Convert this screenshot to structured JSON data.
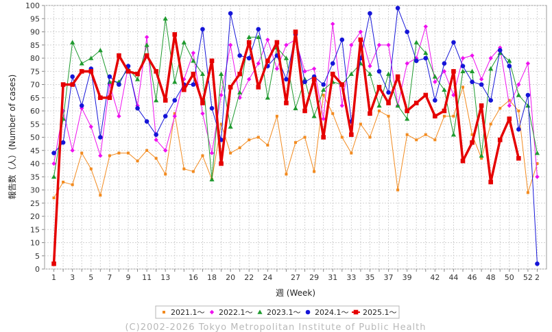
{
  "chart_data": {
    "type": "line",
    "xlabel": "週 (Week)",
    "ylabel": "報告数（人）(Number of cases)",
    "xlim": [
      0,
      54
    ],
    "ylim": [
      0,
      100
    ],
    "x_ticks": [
      "1",
      "2",
      "3",
      "4",
      "5",
      "6",
      "7",
      "8",
      "9",
      "10",
      "11",
      "12",
      "13",
      "14",
      "15",
      "16",
      "17",
      "18",
      "19",
      "20",
      "21",
      "22",
      "23",
      "24",
      "25",
      "26",
      "27",
      "28",
      "29",
      "30",
      "31",
      "32",
      "33",
      "34",
      "35",
      "36",
      "37",
      "38",
      "39",
      "40",
      "41",
      "42",
      "43",
      "44",
      "45",
      "46",
      "47",
      "48",
      "49",
      "50",
      "51",
      "52",
      "2"
    ],
    "y_ticks": [
      "0",
      "5",
      "10",
      "15",
      "20",
      "25",
      "30",
      "35",
      "40",
      "45",
      "50",
      "55",
      "60",
      "65",
      "70",
      "75",
      "80",
      "85",
      "90",
      "95",
      "100"
    ],
    "x_tick_labels_shown": [
      "1",
      "3",
      "5",
      "7",
      "9",
      "11",
      "13",
      "16",
      "18",
      "20",
      "22",
      "24",
      "27",
      "29",
      "31",
      "33",
      "35",
      "37",
      "39",
      "42",
      "44",
      "46",
      "48",
      "50",
      "52",
      "2"
    ],
    "grid": true,
    "legend_position": "bottom",
    "series": [
      {
        "name": "2021.1〜",
        "color": "#f28a1e",
        "marker": "square-small",
        "values": [
          27,
          33,
          32,
          44,
          38,
          28,
          43,
          44,
          44,
          41,
          45,
          42,
          36,
          59,
          38,
          37,
          43,
          34,
          55,
          44,
          46,
          49,
          50,
          47,
          58,
          36,
          48,
          50,
          37,
          66,
          59,
          50,
          44,
          55,
          50,
          60,
          58,
          30,
          51,
          49,
          51,
          49,
          58,
          58,
          69,
          51,
          42,
          55,
          61,
          64,
          60,
          29,
          40
        ]
      },
      {
        "name": "2022.1〜",
        "color": "#ee11ee",
        "marker": "diamond",
        "values": [
          40,
          60,
          45,
          61,
          54,
          43,
          70,
          58,
          77,
          62,
          88,
          49,
          45,
          58,
          72,
          82,
          59,
          44,
          66,
          85,
          65,
          72,
          78,
          87,
          76,
          85,
          87,
          75,
          76,
          57,
          93,
          62,
          85,
          90,
          77,
          85,
          85,
          62,
          78,
          80,
          92,
          71,
          75,
          66,
          80,
          81,
          72,
          80,
          84,
          62,
          70,
          78,
          35
        ]
      },
      {
        "name": "2023.1〜",
        "color": "#1e9a2e",
        "marker": "triangle",
        "values": [
          35,
          57,
          86,
          78,
          80,
          83,
          71,
          71,
          76,
          72,
          85,
          64,
          95,
          71,
          86,
          79,
          74,
          34,
          74,
          54,
          67,
          88,
          88,
          65,
          84,
          80,
          61,
          72,
          58,
          68,
          71,
          70,
          74,
          78,
          74,
          62,
          74,
          62,
          57,
          86,
          82,
          73,
          68,
          51,
          75,
          75,
          43,
          76,
          82,
          79,
          66,
          62,
          44
        ]
      },
      {
        "name": "2024.1〜",
        "color": "#1515d8",
        "marker": "circle",
        "values": [
          44,
          48,
          73,
          62,
          76,
          50,
          73,
          70,
          77,
          61,
          56,
          51,
          58,
          64,
          70,
          70,
          91,
          61,
          49,
          97,
          81,
          80,
          91,
          77,
          81,
          72,
          89,
          71,
          73,
          70,
          78,
          87,
          56,
          80,
          97,
          75,
          67,
          99,
          90,
          79,
          80,
          64,
          78,
          86,
          77,
          71,
          70,
          64,
          83,
          77,
          53,
          66,
          2
        ]
      },
      {
        "name": "2025.1〜",
        "color": "#e50000",
        "marker": "square",
        "width": 3.5,
        "values": [
          2,
          70,
          70,
          75,
          75,
          65,
          65,
          81,
          75,
          74,
          81,
          75,
          64,
          89,
          68,
          74,
          63,
          79,
          40,
          69,
          74,
          86,
          69,
          79,
          86,
          63,
          90,
          60,
          72,
          50,
          74,
          70,
          51,
          87,
          59,
          69,
          63,
          73,
          60,
          63,
          66,
          58,
          60,
          75,
          41,
          48,
          62,
          33,
          49,
          57,
          42
        ]
      }
    ]
  },
  "footer": {
    "copyright": "(C)2002-2026 Tokyo Metropolitan Institute of Public Health"
  }
}
